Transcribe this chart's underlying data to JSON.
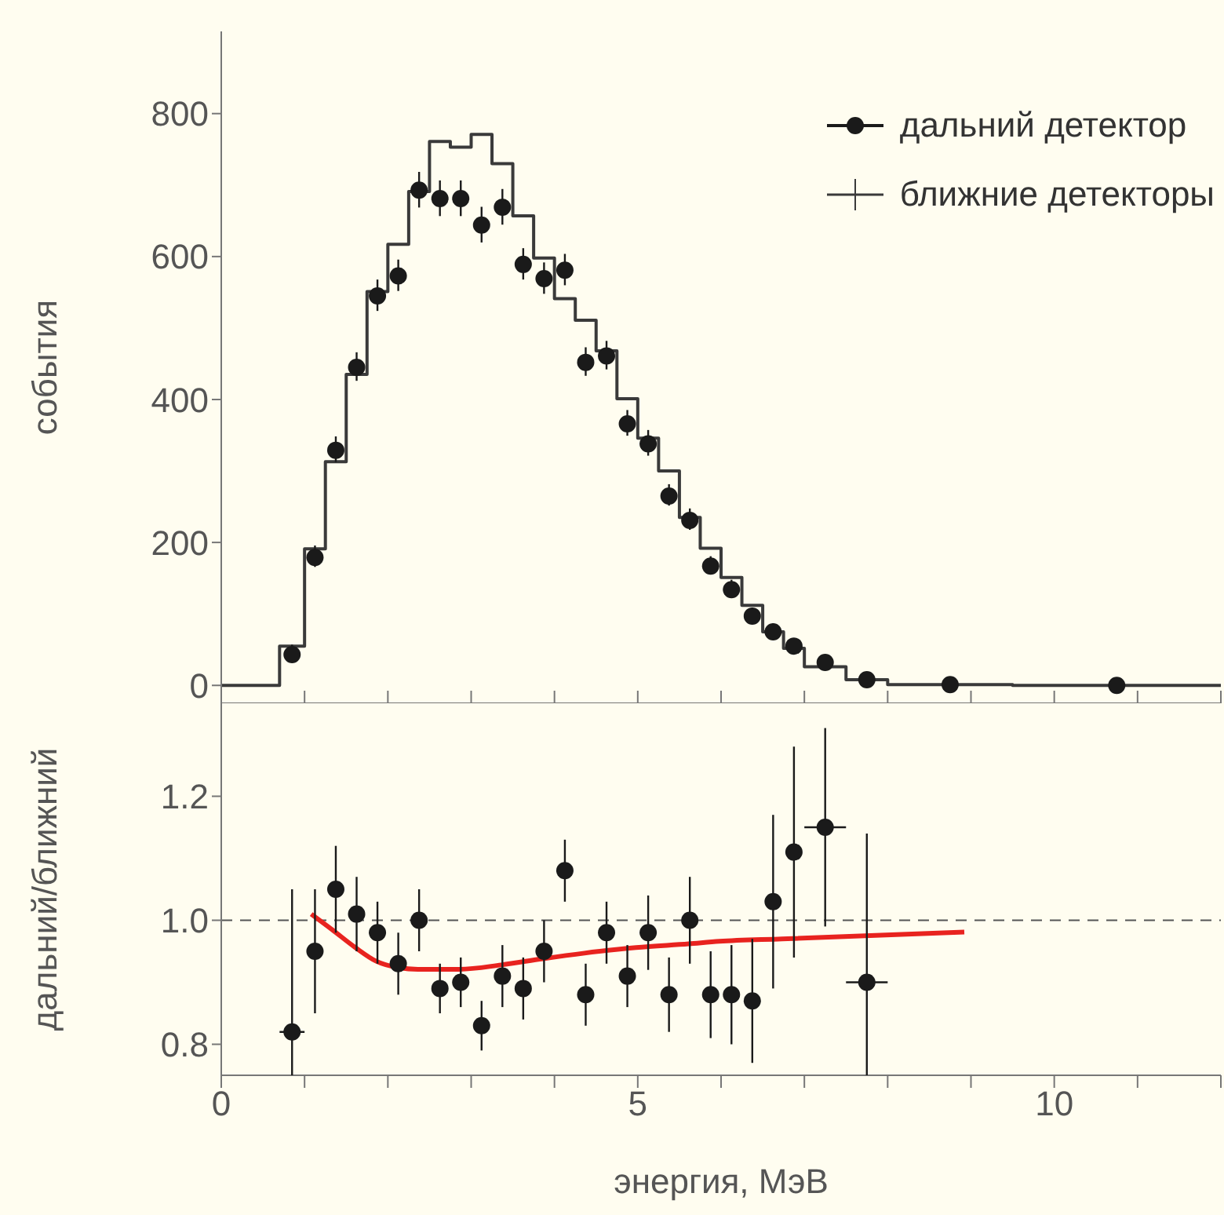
{
  "chart_data": [
    {
      "type": "scatter",
      "ylabel": "события",
      "xlim": [
        0,
        12
      ],
      "xticks": [
        0,
        {
          "value": 1,
          "label": null
        },
        {
          "value": 2,
          "label": null
        },
        {
          "value": 3,
          "label": null
        },
        {
          "value": 4,
          "label": null
        },
        5,
        {
          "value": 6,
          "label": null
        },
        {
          "value": 7,
          "label": null
        },
        {
          "value": 8,
          "label": null
        },
        {
          "value": 9,
          "label": null
        },
        10,
        {
          "value": 11,
          "label": null
        },
        {
          "value": 12,
          "label": null
        }
      ],
      "ylim": [
        -25,
        915
      ],
      "yticks": [
        0,
        200,
        400,
        600,
        800
      ],
      "tick_labels": "y",
      "legend": "top right",
      "grid": false,
      "series": [
        {
          "name": "дальний детектор",
          "marker": "circle",
          "color": "#1a1a1a",
          "x": [
            0.85,
            1.125,
            1.375,
            1.625,
            1.875,
            2.125,
            2.375,
            2.625,
            2.875,
            3.125,
            3.375,
            3.625,
            3.875,
            4.125,
            4.375,
            4.625,
            4.875,
            5.125,
            5.375,
            5.625,
            5.875,
            6.125,
            6.375,
            6.625,
            6.875,
            7.25,
            7.75,
            8.75,
            10.75
          ],
          "values": [
            43,
            179,
            329,
            445,
            545,
            573,
            693,
            681,
            681,
            644,
            669,
            589,
            569,
            581,
            452,
            461,
            366,
            338,
            265,
            231,
            167,
            134,
            97,
            75,
            55,
            32,
            8,
            1,
            0
          ],
          "errors": [
            12,
            15,
            18,
            20,
            22,
            22,
            25,
            25,
            25,
            25,
            25,
            22,
            22,
            22,
            20,
            20,
            18,
            18,
            15,
            15,
            12,
            12,
            10,
            10,
            8,
            6,
            4,
            null,
            null
          ]
        },
        {
          "name": "ближние детекторы",
          "type": "step",
          "color": "#3a3a3a",
          "x": [
            0,
            0.7,
            1.0,
            1.25,
            1.5,
            1.75,
            2.0,
            2.25,
            2.5,
            2.75,
            3.0,
            3.25,
            3.5,
            3.75,
            4.0,
            4.25,
            4.5,
            4.75,
            5.0,
            5.25,
            5.5,
            5.75,
            6.0,
            6.25,
            6.5,
            6.75,
            7.0,
            7.5,
            8.0,
            9.5,
            12
          ],
          "values": [
            0,
            55,
            191,
            313,
            435,
            551,
            617,
            691,
            761,
            753,
            771,
            730,
            657,
            598,
            541,
            511,
            468,
            401,
            346,
            300,
            235,
            192,
            151,
            112,
            75,
            52,
            26,
            8,
            1,
            0,
            0
          ]
        }
      ]
    },
    {
      "type": "scatter",
      "xlabel": "энергия, МэВ",
      "ylabel": "дальний/ближний",
      "xlim": [
        0,
        12
      ],
      "xticks": [
        0,
        {
          "value": 1,
          "label": null
        },
        {
          "value": 2,
          "label": null
        },
        {
          "value": 3,
          "label": null
        },
        {
          "value": 4,
          "label": null
        },
        5,
        {
          "value": 6,
          "label": null
        },
        {
          "value": 7,
          "label": null
        },
        {
          "value": 8,
          "label": null
        },
        {
          "value": 9,
          "label": null
        },
        10,
        {
          "value": 11,
          "label": null
        },
        {
          "value": 12,
          "label": null
        }
      ],
      "ylim": [
        0.75,
        1.35
      ],
      "yticks": [
        {
          "value": 0.8,
          "label": "0.8"
        },
        {
          "value": 1,
          "label": "1.0"
        },
        1.2
      ],
      "grid": false,
      "ref_lines": [
        {
          "axis": "y",
          "value": 1,
          "color": "#555555",
          "line_style": "dashed"
        }
      ],
      "series": [
        {
          "marker": "circle",
          "color": "#1a1a1a",
          "x": [
            0.85,
            1.125,
            1.375,
            1.625,
            1.875,
            2.125,
            2.375,
            2.625,
            2.875,
            3.125,
            3.375,
            3.625,
            3.875,
            4.125,
            4.375,
            4.625,
            4.875,
            5.125,
            5.375,
            5.625,
            5.875,
            6.125,
            6.375,
            6.625,
            6.875,
            7.25,
            7.75
          ],
          "values": [
            0.82,
            0.95,
            1.05,
            1.01,
            0.98,
            0.93,
            1.0,
            0.89,
            0.9,
            0.83,
            0.91,
            0.89,
            0.95,
            1.08,
            0.88,
            0.98,
            0.91,
            0.98,
            0.88,
            1.0,
            0.88,
            0.88,
            0.87,
            1.03,
            1.11,
            1.15,
            0.9
          ],
          "errors": [
            [
              0.75,
              1.05
            ],
            0.1,
            0.07,
            0.06,
            0.05,
            0.05,
            0.05,
            0.04,
            0.04,
            0.04,
            0.05,
            0.05,
            0.05,
            0.05,
            0.05,
            0.05,
            0.05,
            0.06,
            0.06,
            0.07,
            0.07,
            0.08,
            0.1,
            0.14,
            0.17,
            0.16,
            [
              0.75,
              1.14
            ]
          ],
          "xerrors": [
            0.15,
            null,
            null,
            null,
            null,
            null,
            null,
            null,
            null,
            null,
            null,
            null,
            null,
            null,
            null,
            null,
            null,
            null,
            null,
            null,
            null,
            null,
            null,
            null,
            null,
            0.25,
            0.25
          ]
        },
        {
          "type": "line",
          "color": "#e8231f",
          "x": [
            1.08,
            1.33,
            1.61,
            1.86,
            2.11,
            2.36,
            2.86,
            3.36,
            3.86,
            4.36,
            4.98,
            5.61,
            5.98,
            6.73,
            8.92
          ],
          "values": [
            1.01,
            0.985,
            0.956,
            0.934,
            0.924,
            0.921,
            0.921,
            0.928,
            0.938,
            0.947,
            0.956,
            0.962,
            0.966,
            0.97,
            0.981
          ]
        }
      ]
    }
  ]
}
